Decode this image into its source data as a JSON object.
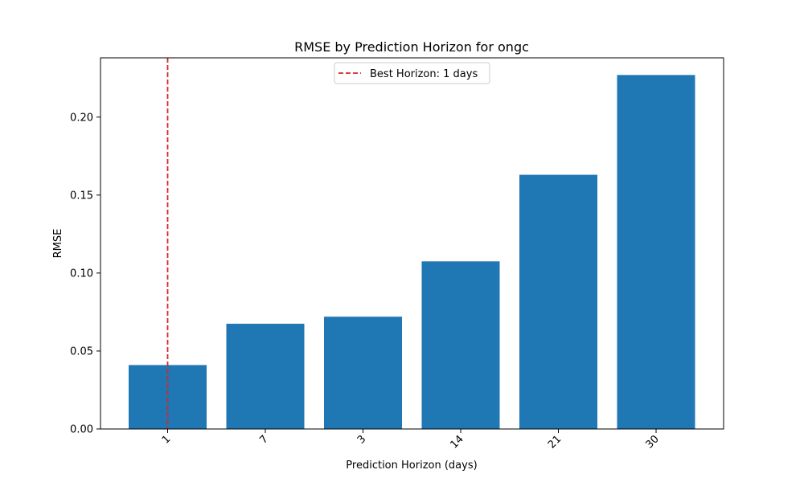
{
  "chart_data": {
    "type": "bar",
    "title": "RMSE by Prediction Horizon for ongc",
    "xlabel": "Prediction Horizon (days)",
    "ylabel": "RMSE",
    "categories": [
      "1",
      "7",
      "3",
      "14",
      "21",
      "30"
    ],
    "values": [
      0.041,
      0.0675,
      0.072,
      0.1075,
      0.163,
      0.227
    ],
    "ylim": [
      0,
      0.238
    ],
    "yticks": [
      0.0,
      0.05,
      0.1,
      0.15,
      0.2
    ],
    "ytick_labels": [
      "0.00",
      "0.05",
      "0.10",
      "0.15",
      "0.20"
    ],
    "bar_color": "#1f77b4",
    "grid": false,
    "x_tick_rotation_deg": 45,
    "reference_line": {
      "orientation": "vertical",
      "at_category": "1",
      "style": "dashed",
      "color": "#d62728",
      "label": "Best Horizon: 1 days"
    },
    "legend": {
      "placement": "top-center",
      "entries": [
        "Best Horizon: 1 days"
      ]
    }
  }
}
